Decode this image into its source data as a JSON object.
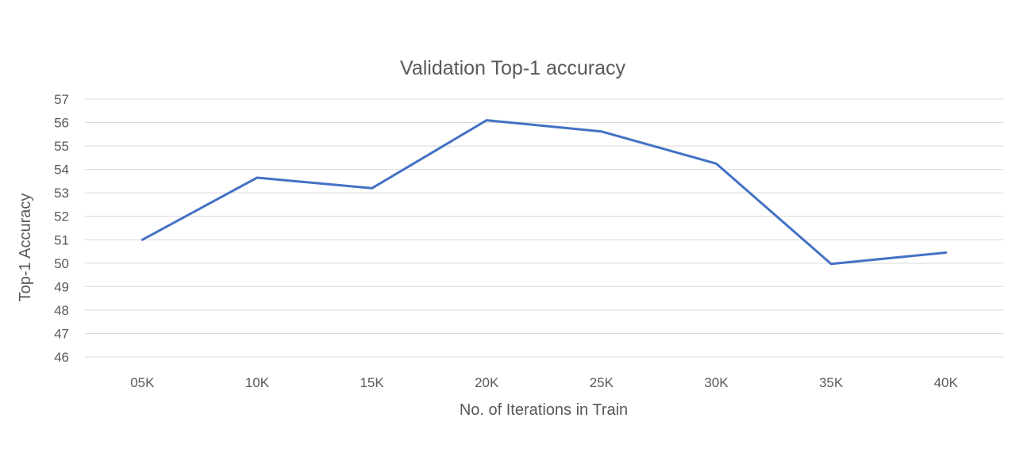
{
  "chart_data": {
    "type": "line",
    "title": "Validation Top-1 accuracy",
    "xlabel": "No. of Iterations in Train",
    "ylabel": "Top-1 Accuracy",
    "categories": [
      "05K",
      "10K",
      "15K",
      "20K",
      "25K",
      "30K",
      "35K",
      "40K"
    ],
    "series": [
      {
        "values": [
          51.0,
          53.65,
          53.2,
          56.1,
          55.62,
          54.25,
          49.97,
          50.45
        ],
        "color": "#4472C4"
      }
    ],
    "ylim": [
      46,
      57
    ],
    "yticks": [
      46,
      47,
      48,
      49,
      50,
      51,
      52,
      53,
      54,
      55,
      56,
      57
    ],
    "grid": true,
    "gridline_color": "#D9D9D9",
    "legend": "none"
  }
}
